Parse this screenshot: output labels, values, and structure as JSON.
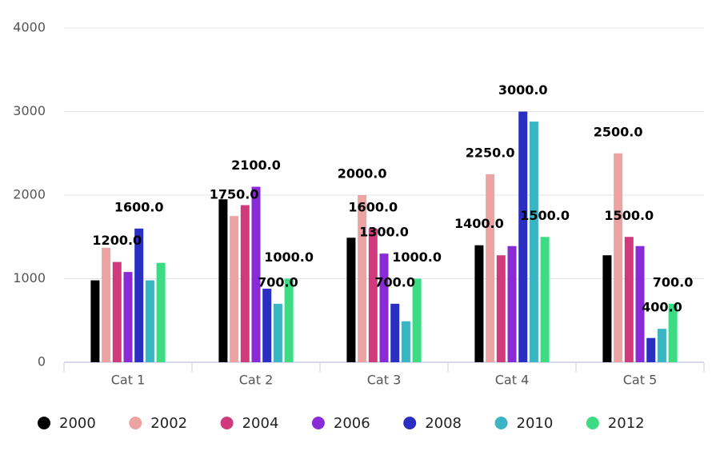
{
  "chart_data": {
    "type": "bar",
    "categories": [
      "Cat 1",
      "Cat 2",
      "Cat 3",
      "Cat 4",
      "Cat 5"
    ],
    "series": [
      {
        "name": "2000",
        "color": "#000000",
        "values": [
          980,
          1950,
          1490,
          1400,
          1280
        ],
        "value_labels": [
          null,
          null,
          null,
          "1400.0",
          null
        ]
      },
      {
        "name": "2002",
        "color": "#eea3a3",
        "values": [
          1370,
          1750,
          2000,
          2250,
          2500
        ],
        "value_labels": [
          null,
          "1750.0",
          "2000.0",
          "2250.0",
          "2500.0"
        ]
      },
      {
        "name": "2004",
        "color": "#d03a7c",
        "values": [
          1200,
          1880,
          1600,
          1280,
          1500
        ],
        "value_labels": [
          "1200.0",
          null,
          "1600.0",
          null,
          "1500.0"
        ]
      },
      {
        "name": "2006",
        "color": "#8a2ad6",
        "values": [
          1080,
          2100,
          1300,
          1390,
          1390
        ],
        "value_labels": [
          null,
          "2100.0",
          "1300.0",
          null,
          null
        ]
      },
      {
        "name": "2008",
        "color": "#2a2fc2",
        "values": [
          1600,
          880,
          700,
          3000,
          290
        ],
        "value_labels": [
          "1600.0",
          null,
          "700.0",
          "3000.0",
          null
        ]
      },
      {
        "name": "2010",
        "color": "#3bb5c3",
        "values": [
          980,
          700,
          490,
          2880,
          400
        ],
        "value_labels": [
          null,
          "700.0",
          null,
          null,
          "400.0"
        ]
      },
      {
        "name": "2012",
        "color": "#3ddc84",
        "values": [
          1190,
          1000,
          1000,
          1500,
          700
        ],
        "value_labels": [
          null,
          "1000.0",
          "1000.0",
          "1500.0",
          "700.0"
        ]
      }
    ],
    "ylim": [
      0,
      4000
    ],
    "yticks": [
      0,
      1000,
      2000,
      3000,
      4000
    ],
    "grid": true,
    "legend": "bottom"
  }
}
